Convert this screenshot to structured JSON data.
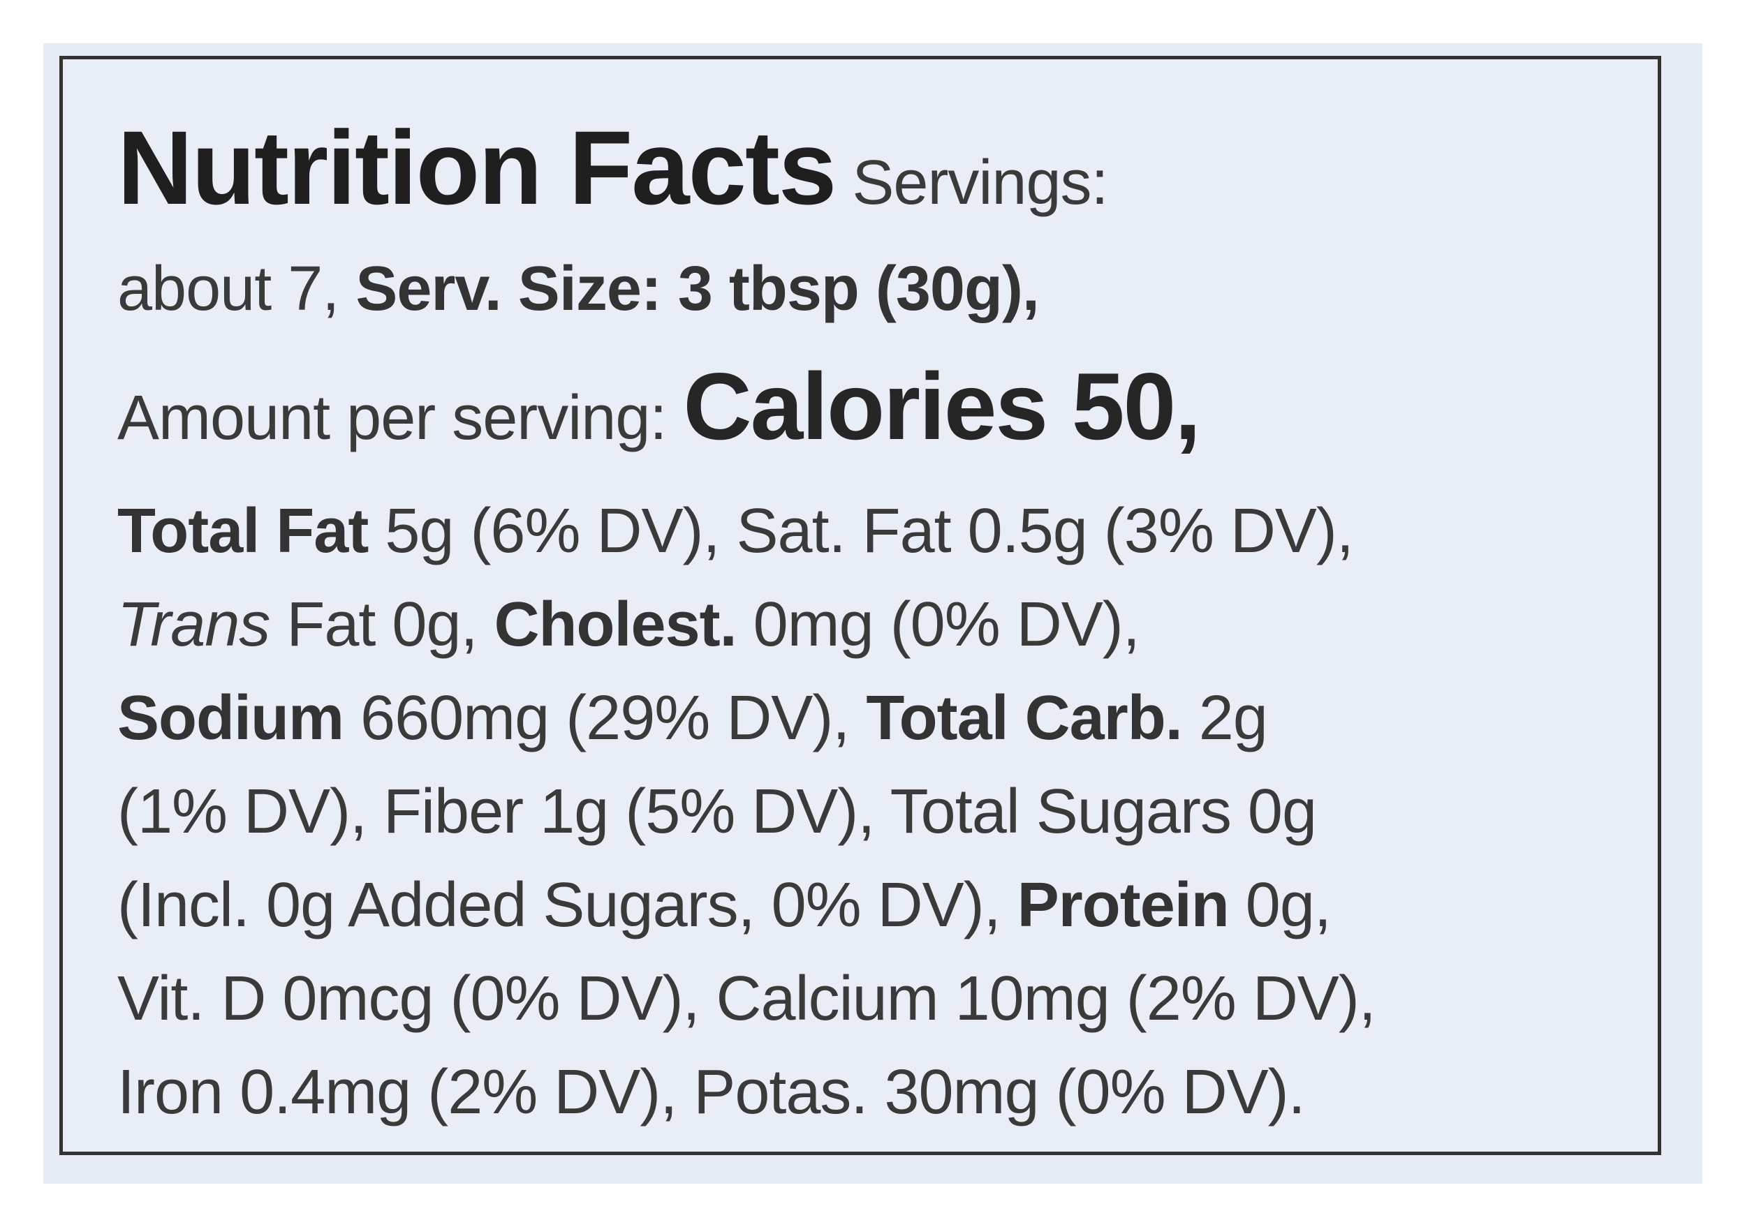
{
  "label": {
    "title": "Nutrition Facts",
    "servings_label": "Servings:",
    "servings_value": "about 7,",
    "serv_size_label": "Serv. Size: 3 tbsp (30g),",
    "amount_per_serving": "Amount per serving:",
    "calories": "Calories 50,",
    "total_fat_label": "Total Fat",
    "total_fat_value": "5g (6% DV), Sat. Fat 0.5g (3% DV),",
    "trans_label": "Trans",
    "trans_value": "Fat 0g,",
    "cholest_label": "Cholest.",
    "cholest_value": "0mg (0% DV),",
    "sodium_label": "Sodium",
    "sodium_value": "660mg (29% DV),",
    "total_carb_label": "Total Carb.",
    "total_carb_value": "2g",
    "line6": "(1% DV), Fiber 1g (5% DV), Total Sugars 0g",
    "line7_start": "(Incl. 0g Added Sugars, 0% DV),",
    "protein_label": "Protein",
    "protein_value": "0g,",
    "line8": "Vit. D 0mcg (0% DV), Calcium 10mg (2% DV),",
    "line9": "Iron 0.4mg (2% DV), Potas. 30mg (0% DV)."
  }
}
